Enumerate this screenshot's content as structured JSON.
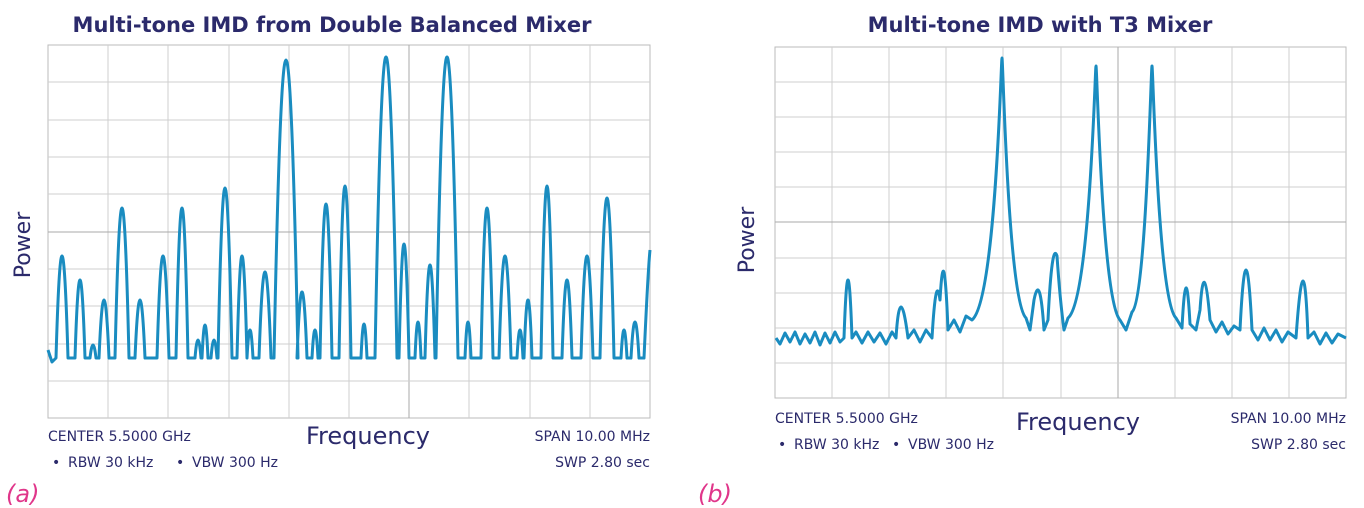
{
  "panels": [
    {
      "title": "Multi-tone IMD from Double Balanced Mixer",
      "y_label": "Power",
      "x_label": "Frequency",
      "center": "CENTER 5.5000 GHz",
      "span": "SPAN 10.00 MHz",
      "rbw": "RBW 30 kHz",
      "vbw": "VBW 300 Hz",
      "swp": "SWP 2.80 sec",
      "tag": "(a)"
    },
    {
      "title": "Multi-tone IMD with T3 Mixer",
      "y_label": "Power",
      "x_label": "Frequency",
      "center": "CENTER 5.5000 GHz",
      "span": "SPAN 10.00 MHz",
      "rbw": "RBW 30 kHz",
      "vbw": "VBW 300 Hz",
      "swp": "SWP 2.80 sec",
      "tag": "(b)"
    }
  ]
}
